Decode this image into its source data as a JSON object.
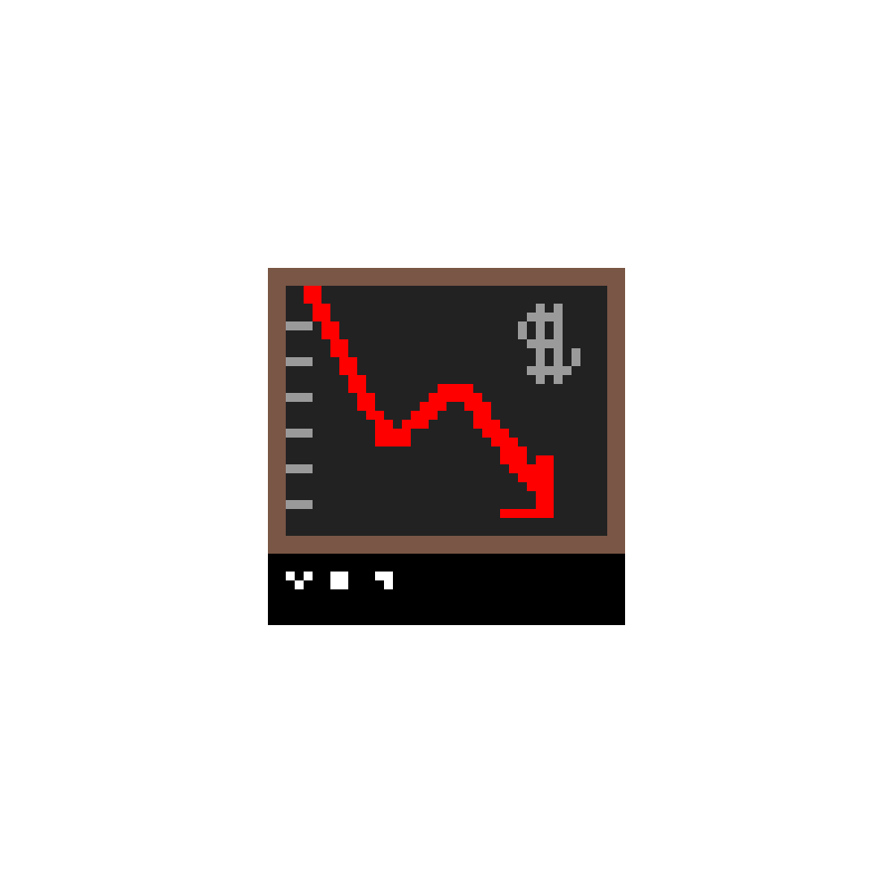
{
  "icon": {
    "name": "falling-dollar-chart-icon",
    "frame_color": "#7a5646",
    "board_color": "#222222",
    "tick_color": "#9a9a9a",
    "trend_color": "#ff0000",
    "dollar_color": "#9a9a9a",
    "caption_bar_color": "#000000",
    "caption_glyph_color": "#ffffff"
  }
}
